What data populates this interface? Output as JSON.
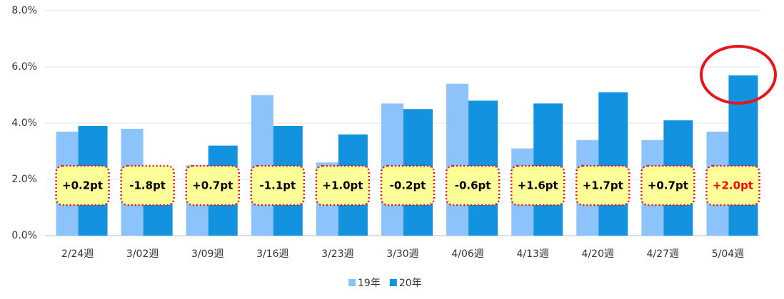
{
  "chart_data": {
    "type": "bar",
    "categories": [
      "2/24週",
      "3/02週",
      "3/09週",
      "3/16週",
      "3/23週",
      "3/30週",
      "4/06週",
      "4/13週",
      "4/20週",
      "4/27週",
      "5/04週"
    ],
    "series": [
      {
        "name": "19年",
        "color": "#8cc3fa",
        "values": [
          3.7,
          3.8,
          2.5,
          5.0,
          2.6,
          4.7,
          5.4,
          3.1,
          3.4,
          3.4,
          3.7
        ]
      },
      {
        "name": "20年",
        "color": "#1392e0",
        "values": [
          3.9,
          2.0,
          3.2,
          3.9,
          3.6,
          4.5,
          4.8,
          4.7,
          5.1,
          4.1,
          5.7
        ]
      }
    ],
    "annotations": [
      {
        "text": "+0.2pt",
        "color": "#000000"
      },
      {
        "text": "-1.8pt",
        "color": "#000000"
      },
      {
        "text": "+0.7pt",
        "color": "#000000"
      },
      {
        "text": "-1.1pt",
        "color": "#000000"
      },
      {
        "text": "+1.0pt",
        "color": "#000000"
      },
      {
        "text": "-0.2pt",
        "color": "#000000"
      },
      {
        "text": "-0.6pt",
        "color": "#000000"
      },
      {
        "text": "+1.6pt",
        "color": "#000000"
      },
      {
        "text": "+1.7pt",
        "color": "#000000"
      },
      {
        "text": "+0.7pt",
        "color": "#000000"
      },
      {
        "text": "+2.0pt",
        "color": "#ff0000"
      }
    ],
    "ylim": [
      0,
      8
    ],
    "yticks": [
      {
        "value": 0,
        "label": "0.0%"
      },
      {
        "value": 2,
        "label": "2.0%"
      },
      {
        "value": 4,
        "label": "4.0%"
      },
      {
        "value": 6,
        "label": "6.0%"
      },
      {
        "value": 8,
        "label": "8.0%"
      }
    ],
    "grid": true
  }
}
